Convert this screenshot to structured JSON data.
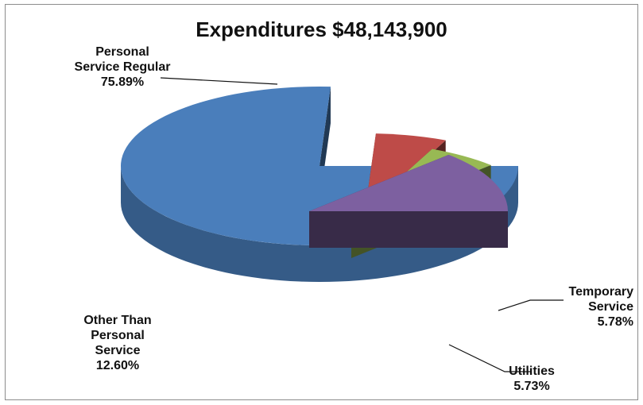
{
  "chart_data": {
    "type": "pie",
    "title": "Expenditures $48,143,900",
    "slices": [
      {
        "label_lines": [
          "Personal",
          "Service Regular"
        ],
        "percent_text": "75.89%",
        "value": 75.89,
        "color": "#4a7ebb"
      },
      {
        "label_lines": [
          "Temporary",
          "Service"
        ],
        "percent_text": "5.78%",
        "value": 5.78,
        "color": "#be4b48"
      },
      {
        "label_lines": [
          "Utilities"
        ],
        "percent_text": "5.73%",
        "value": 5.73,
        "color": "#98b954"
      },
      {
        "label_lines": [
          "Other Than",
          "Personal",
          "Service"
        ],
        "percent_text": "12.60%",
        "value": 12.6,
        "color": "#7d60a0"
      }
    ]
  }
}
